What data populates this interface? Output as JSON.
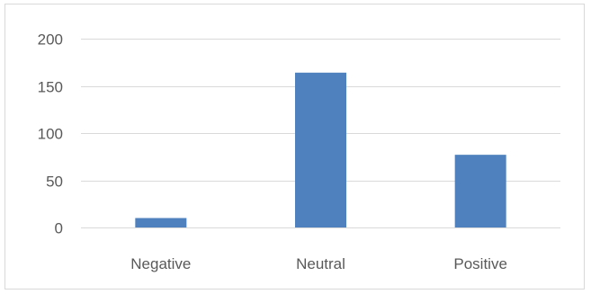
{
  "chart_data": {
    "type": "bar",
    "title": "",
    "xlabel": "",
    "ylabel": "",
    "categories": [
      "Negative",
      "Neutral",
      "Positive"
    ],
    "values": [
      10,
      164,
      77
    ],
    "ylim": [
      0,
      200
    ],
    "yticks": [
      0,
      50,
      100,
      150,
      200
    ],
    "grid": true,
    "legend": "none",
    "bar_color": "#4e81bd"
  }
}
